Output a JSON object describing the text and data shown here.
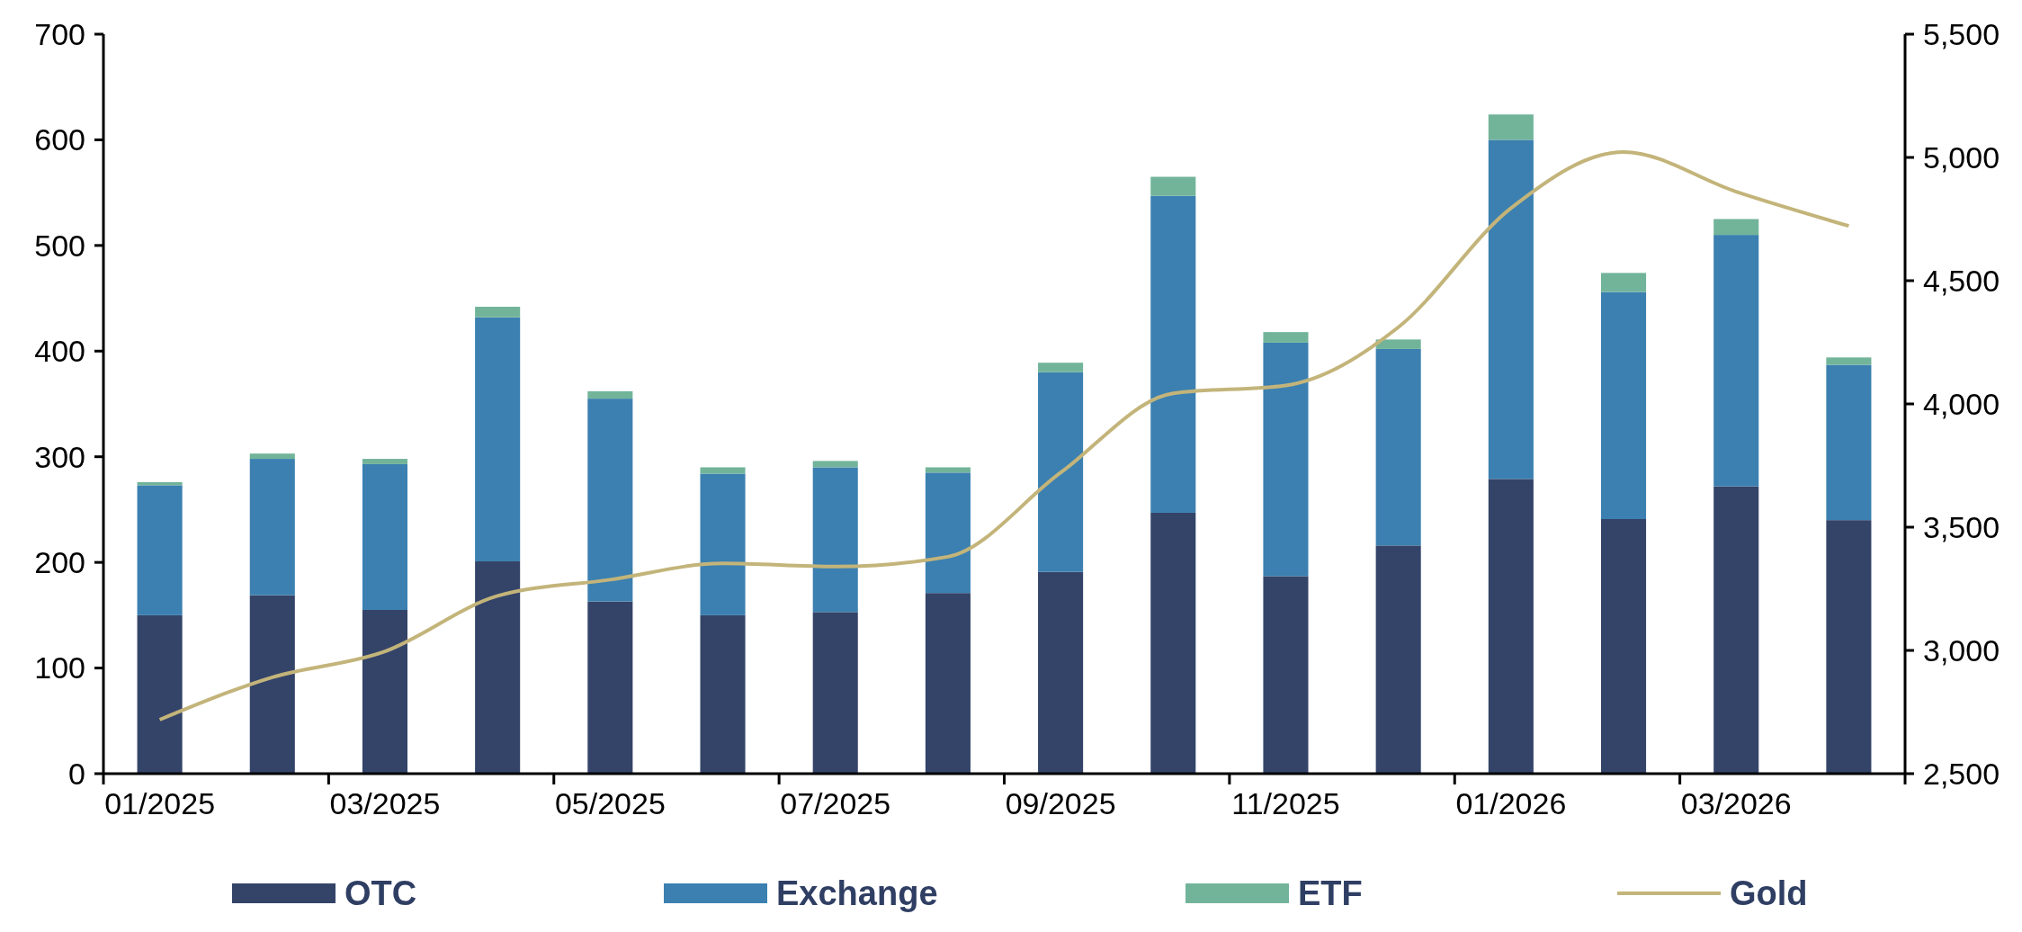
{
  "chart_data": {
    "type": "bar",
    "stacked": true,
    "categories": [
      "01/2025",
      null,
      "03/2025",
      null,
      "05/2025",
      null,
      "07/2025",
      null,
      "09/2025",
      null,
      "11/2025",
      null,
      "01/2026",
      null,
      "03/2026",
      null
    ],
    "series": [
      {
        "name": "OTC",
        "color": "#344469",
        "values": [
          150,
          169,
          155,
          201,
          163,
          150,
          153,
          171,
          191,
          247,
          187,
          216,
          279,
          241,
          272,
          240
        ]
      },
      {
        "name": "Exchange",
        "color": "#3b80b0",
        "values": [
          123,
          129,
          138,
          231,
          192,
          134,
          137,
          114,
          189,
          300,
          221,
          186,
          321,
          215,
          238,
          147
        ]
      },
      {
        "name": "ETF",
        "color": "#72b49a",
        "values": [
          3,
          5,
          5,
          10,
          7,
          6,
          6,
          5,
          9,
          18,
          10,
          9,
          24,
          18,
          15,
          7
        ]
      },
      {
        "name": "Gold",
        "type": "line",
        "axis": "y2",
        "color": "#c3b47a",
        "values": [
          2719,
          2891,
          2996,
          3221,
          3287,
          3353,
          3340,
          3380,
          3721,
          4043,
          4075,
          4311,
          4794,
          5022,
          4861,
          4722
        ]
      }
    ],
    "ylim": [
      0,
      700
    ],
    "yticks": [
      0,
      100,
      200,
      300,
      400,
      500,
      600,
      700
    ],
    "y2lim": [
      2500,
      5500
    ],
    "y2ticks": [
      {
        "value": 2500,
        "label": "2,500"
      },
      {
        "value": 3000,
        "label": "3,000"
      },
      {
        "value": 3500,
        "label": "3,500"
      },
      {
        "value": 4000,
        "label": "4,000"
      },
      {
        "value": 4500,
        "label": "4,500"
      },
      {
        "value": 5000,
        "label": "5,000"
      },
      {
        "value": 5500,
        "label": "5,500"
      }
    ],
    "grid": false,
    "legend": "bottom"
  }
}
